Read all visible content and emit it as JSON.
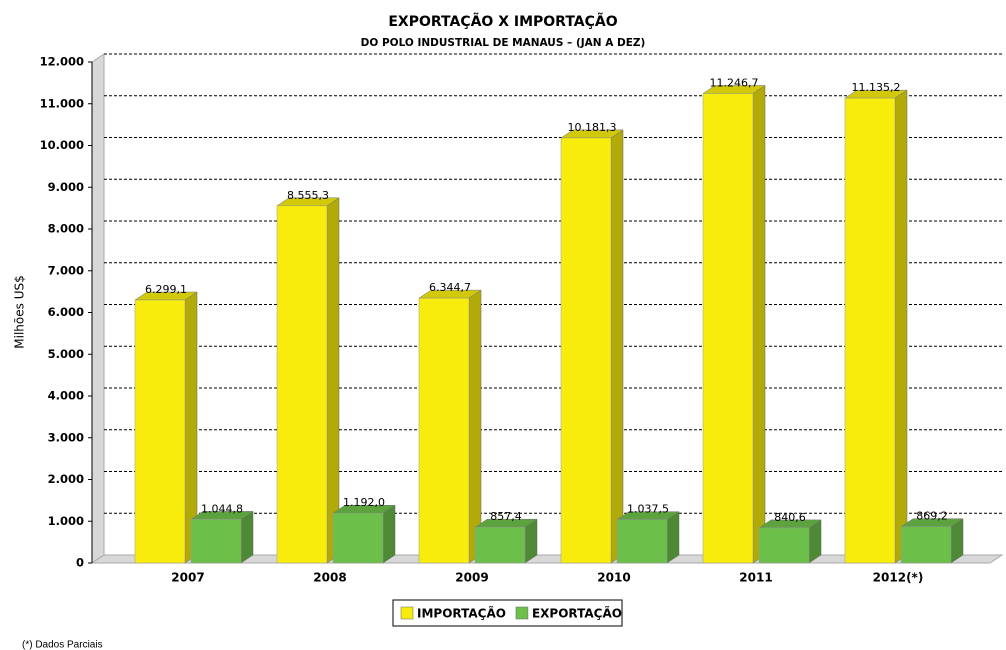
{
  "chart_data": {
    "type": "bar",
    "title": "EXPORTAÇÃO X IMPORTAÇÃO",
    "subtitle": "DO POLO INDUSTRIAL DE MANAUS – (JAN A DEZ)",
    "y_label": "Milhões US$",
    "footnote": "(*) Dados Parciais",
    "categories": [
      "2007",
      "2008",
      "2009",
      "2010",
      "2011",
      "2012(*)"
    ],
    "series": [
      {
        "name": "IMPORTAÇÃO",
        "color": "#f7ec0c",
        "values": [
          6299.1,
          8555.3,
          6344.7,
          10181.3,
          11246.7,
          11135.2
        ],
        "value_labels": [
          "6.299,1",
          "8.555,3",
          "6.344,7",
          "10.181,3",
          "11.246,7",
          "11.135,2"
        ]
      },
      {
        "name": "EXPORTAÇÃO",
        "color": "#6cc04a",
        "values": [
          1044.8,
          1192.0,
          857.4,
          1037.5,
          840.6,
          869.2
        ],
        "value_labels": [
          "1.044,8",
          "1.192,0",
          "857,4",
          "1.037,5",
          "840,6",
          "869,2"
        ]
      }
    ],
    "ylim": [
      0,
      12000
    ],
    "yticks": [
      0,
      {
        "value": 1000,
        "label": "1.000"
      },
      {
        "value": 2000,
        "label": "2.000"
      },
      {
        "value": 3000,
        "label": "3.000"
      },
      {
        "value": 4000,
        "label": "4.000"
      },
      {
        "value": 5000,
        "label": "5.000"
      },
      {
        "value": 6000,
        "label": "6.000"
      },
      {
        "value": 7000,
        "label": "7.000"
      },
      {
        "value": 8000,
        "label": "8.000"
      },
      {
        "value": 9000,
        "label": "9.000"
      },
      {
        "value": 10000,
        "label": "10.000"
      },
      {
        "value": 11000,
        "label": "11.000"
      },
      {
        "value": 12000,
        "label": "12.000"
      }
    ],
    "grid": true,
    "legend": "bottom"
  }
}
